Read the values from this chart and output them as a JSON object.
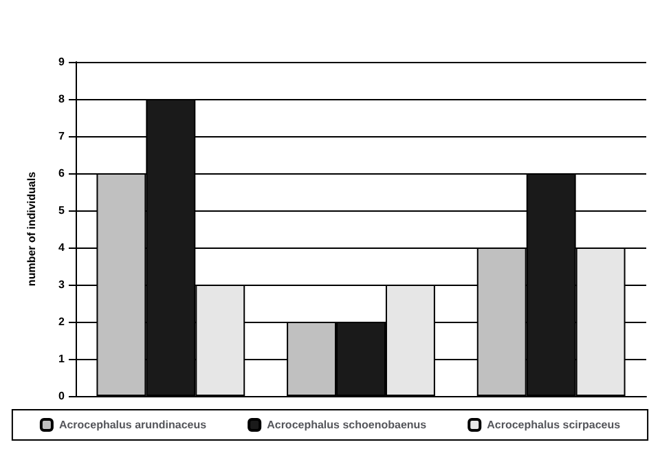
{
  "chart_data": {
    "type": "bar",
    "ylabel": "number of individuals",
    "categories": [
      null,
      null,
      null
    ],
    "series": [
      {
        "name": "Acrocephalus arundinaceus",
        "color": "#c0c0c0",
        "values": [
          6,
          2,
          4
        ]
      },
      {
        "name": "Acrocephalus schoenobaenus",
        "color": "#1a1a1a",
        "values": [
          8,
          2,
          6
        ]
      },
      {
        "name": "Acrocephalus scirpaceus",
        "color": "#e6e6e6",
        "values": [
          3,
          3,
          4
        ]
      }
    ],
    "ylim": [
      0,
      9
    ],
    "yticks": [
      0,
      1,
      2,
      3,
      4,
      5,
      6,
      7,
      8,
      9
    ],
    "grid": "y",
    "legend": "bottom"
  }
}
